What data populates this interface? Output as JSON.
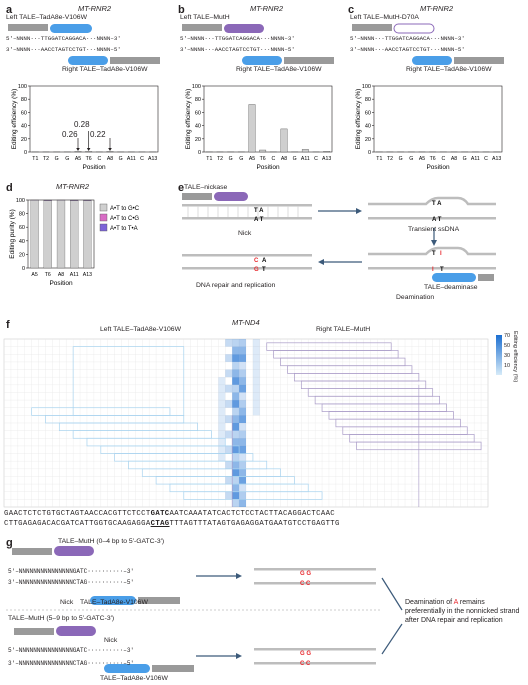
{
  "panel_a": {
    "label": "a",
    "title": "MT-RNR2",
    "left_protein": "Left TALE–TadA8e-V106W",
    "right_protein": "Right TALE–TadA8e-V106W",
    "seq_top": "5′–NNNN···TTGGATCAGGACA···NNNN–3′",
    "seq_bot": "3′–NNNN···AACCTAGTCCTGT···NNNN–5′",
    "ylabel": "Editing efficiency (%)",
    "xlabel": "Position",
    "annotations": [
      "0.26",
      "0.28",
      "0.22"
    ]
  },
  "panel_b": {
    "label": "b",
    "title": "MT-RNR2",
    "left_protein": "Left TALE–MutH",
    "right_protein": "Right TALE–TadA8e-V106W",
    "seq_top": "5′–NNNN···TTGGATCAGGACA···NNNN–3′",
    "seq_bot": "3′–NNNN···AACCTAGTCCTGT···NNNN–5′",
    "ylabel": "Editing efficiency (%)",
    "xlabel": "Position"
  },
  "panel_c": {
    "label": "c",
    "title": "MT-RNR2",
    "left_protein": "Left TALE–MutH-D70A",
    "right_protein": "Right TALE–TadA8e-V106W",
    "seq_top": "5′–NNNN···TTGGATCAGGACA···NNNN–3′",
    "seq_bot": "3′–NNNN···AACCTAGTCCTGT···NNNN–5′",
    "ylabel": "Editing efficiency (%)",
    "xlabel": "Position"
  },
  "panel_d": {
    "label": "d",
    "title": "MT-RNR2",
    "ylabel": "Editing purity (%)",
    "xlabel": "Position",
    "legend": [
      "A•T to G•C",
      "A•T to C•G",
      "A•T to T•A"
    ]
  },
  "panel_e": {
    "label": "e",
    "nickase": "TALE–nickase",
    "nick": "Nick",
    "transient": "Transient ssDNA",
    "repair": "DNA repair and replication",
    "deamination": "Deamination",
    "deaminase": "TALE–deaminase"
  },
  "panel_f": {
    "label": "f",
    "title": "MT-ND4",
    "left_protein": "Left TALE–TadA8e-V106W",
    "right_protein": "Right TALE–MutH",
    "colorbar_label": "Editing efficiency (%)",
    "colorbar_ticks": [
      "70",
      "50",
      "30",
      "10"
    ],
    "seq_top_a": "GAACTCTCTGTGCTAGTAACCACGTTCTCCT",
    "seq_top_b": "GATC",
    "seq_top_c": "AATCAAATATCACTCTCCTACTTACAGGACTCAAC",
    "seq_bot_a": "CTTGAGAGACACGATCATTGGTGCAAGAGGA",
    "seq_bot_b": "CTAG",
    "seq_bot_c": "TTTAGTTTATAGTGAGAGGATGAATGTCCTGAGTTG"
  },
  "panel_g": {
    "label": "g",
    "top_protein": "TALE–MutH (0–4 bp to 5′-GATC-3′)",
    "top_seq1": "5′–NNNNNNNNNNNNNNNGATC··········–3′",
    "top_seq2": "3′–NNNNNNNNNNNNNNNCTAG··········–5′",
    "top_nick": "Nick",
    "top_deaminase": "TALE–TadA8e-V106W",
    "bot_protein": "TALE–MutH (5–9 bp to 5′-GATC-3′)",
    "bot_nick": "Nick",
    "bot_seq1": "5′–NNNNNNNNNNNNNNNGATC··········–3′",
    "bot_seq2": "3′–NNNNNNNNNNNNNNNCTAG··········–5′",
    "bot_deaminase": "TALE–TadA8e-V106W",
    "conclusion_a": "Deamination of",
    "conclusion_A": "A",
    "conclusion_b": "remains preferentially in the nonnicked strand after DNA repair and replication"
  },
  "chart_data": [
    {
      "type": "bar",
      "panel": "a",
      "categories": [
        "T1",
        "T2",
        "G",
        "G",
        "A5",
        "T6",
        "C",
        "A8",
        "G",
        "A11",
        "C",
        "A13"
      ],
      "values": [
        0,
        0,
        0,
        0,
        0.26,
        0.28,
        0,
        0.22,
        0,
        0,
        0,
        0
      ],
      "ylabel": "Editing efficiency (%)",
      "xlabel": "Position",
      "ylim": [
        0,
        100
      ],
      "yticks": [
        0,
        20,
        40,
        60,
        80,
        100
      ]
    },
    {
      "type": "bar",
      "panel": "b",
      "categories": [
        "T1",
        "T2",
        "G",
        "G",
        "A5",
        "T6",
        "C",
        "A8",
        "G",
        "A11",
        "C",
        "A13"
      ],
      "values": [
        0,
        0,
        0,
        0,
        72,
        3,
        0,
        35,
        0,
        4,
        0,
        1
      ],
      "ylabel": "Editing efficiency (%)",
      "xlabel": "Position",
      "ylim": [
        0,
        100
      ],
      "yticks": [
        0,
        20,
        40,
        60,
        80,
        100
      ]
    },
    {
      "type": "bar",
      "panel": "c",
      "categories": [
        "T1",
        "T2",
        "G",
        "G",
        "A5",
        "T6",
        "C",
        "A8",
        "G",
        "A11",
        "C",
        "A13"
      ],
      "values": [
        0,
        0,
        0,
        0,
        0,
        0,
        0,
        0,
        0,
        0,
        0,
        0
      ],
      "ylabel": "Editing efficiency (%)",
      "xlabel": "Position",
      "ylim": [
        0,
        100
      ],
      "yticks": [
        0,
        20,
        40,
        60,
        80,
        100
      ]
    },
    {
      "type": "bar",
      "panel": "d",
      "categories": [
        "A5",
        "T6",
        "A8",
        "A11",
        "A13"
      ],
      "series": [
        {
          "name": "A•T to G•C",
          "values": [
            99.5,
            99,
            99.5,
            99,
            99
          ]
        },
        {
          "name": "A•T to C•G",
          "values": [
            0.3,
            0.5,
            0.3,
            0.5,
            0.5
          ]
        },
        {
          "name": "A•T to T•A",
          "values": [
            0.2,
            0.5,
            0.2,
            0.5,
            0.5
          ]
        }
      ],
      "ylabel": "Editing purity (%)",
      "xlabel": "Position",
      "ylim": [
        0,
        100
      ],
      "yticks": [
        0,
        20,
        40,
        60,
        80,
        100
      ]
    }
  ],
  "colors": {
    "blue": "#4a9ee8",
    "purple": "#8b68b8",
    "bar_gray": "#cfcfcf",
    "edit_red": "#e8262b",
    "grid": "#dcdcdc",
    "box_blue": "#a8d3ef",
    "box_purple": "#a99bc7"
  }
}
